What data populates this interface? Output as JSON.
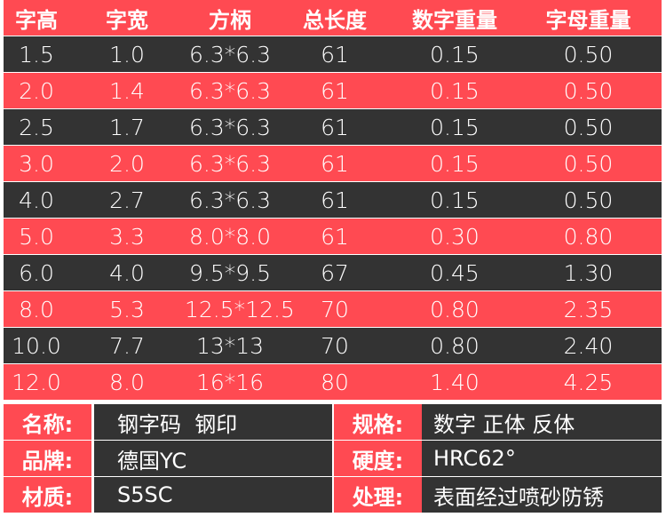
{
  "colors": {
    "accent_red": "#ff4a52",
    "dark": "#333333",
    "text": "#ffffff"
  },
  "table": {
    "headers": [
      "字高",
      "字宽",
      "方柄",
      "总长度",
      "数字重量",
      "字母重量"
    ],
    "rows": [
      [
        "1.5",
        "1.0",
        "6.3*6.3",
        "61",
        "0.15",
        "0.50"
      ],
      [
        "2.0",
        "1.4",
        "6.3*6.3",
        "61",
        "0.15",
        "0.50"
      ],
      [
        "2.5",
        "1.7",
        "6.3*6.3",
        "61",
        "0.15",
        "0.50"
      ],
      [
        "3.0",
        "2.0",
        "6.3*6.3",
        "61",
        "0.15",
        "0.50"
      ],
      [
        "4.0",
        "2.7",
        "6.3*6.3",
        "61",
        "0.15",
        "0.50"
      ],
      [
        "5.0",
        "3.3",
        "8.0*8.0",
        "61",
        "0.30",
        "0.80"
      ],
      [
        "6.0",
        "4.0",
        "9.5*9.5",
        "67",
        "0.45",
        "1.30"
      ],
      [
        "8.0",
        "5.3",
        "12.5*12.5",
        "70",
        "0.80",
        "2.35"
      ],
      [
        "10.0",
        "7.7",
        "13*13",
        "70",
        "0.80",
        "2.40"
      ],
      [
        "12.0",
        "8.0",
        "16*16",
        "80",
        "1.40",
        "4.25"
      ]
    ]
  },
  "info": [
    {
      "label": "名称:",
      "value": "钢字码  钢印",
      "label2": "规格:",
      "value2": "数字 正体 反体"
    },
    {
      "label": "品牌:",
      "value": "德国YC",
      "label2": "硬度:",
      "value2": "HRC62°"
    },
    {
      "label": "材质:",
      "value": "S5SC",
      "label2": "处理:",
      "value2": "表面经过喷砂防锈"
    }
  ]
}
